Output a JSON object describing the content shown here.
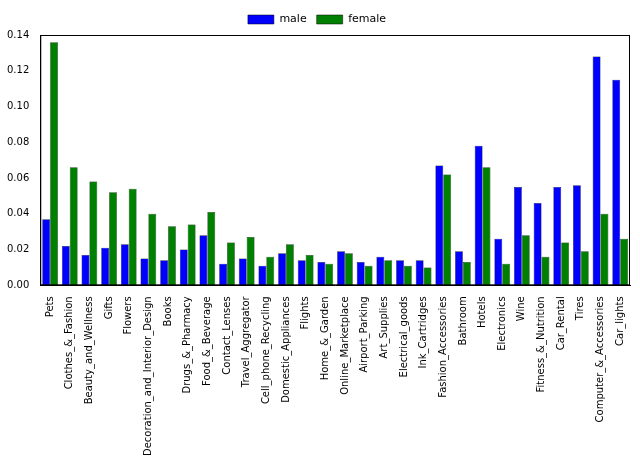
{
  "chart_data": {
    "type": "bar",
    "categories": [
      "Pets",
      "Clothes_&_Fashion",
      "Beauty_and_Wellness",
      "Gifts",
      "Flowers",
      "Decoration_and_Interior_Design",
      "Books",
      "Drugs_&_Pharmacy",
      "Food_&_Beverage",
      "Contact_Lenses",
      "Travel_Aggregator",
      "Cell_phone_Recycling",
      "Domestic_Appliances",
      "Flights",
      "Home_&_Garden",
      "Online_Marketplace",
      "Airport_Parking",
      "Art_Supplies",
      "Electrical_goods",
      "Ink_Cartridges",
      "Fashion_Accessories",
      "Bathroom",
      "Hotels",
      "Electronics",
      "Wine",
      "Fitness_&_Nutrition",
      "Car_Rental",
      "Tires",
      "Computer_&_Accessories",
      "Car_lights"
    ],
    "series": [
      {
        "name": "male",
        "color": "#0000ff",
        "values": [
          0.037,
          0.022,
          0.017,
          0.021,
          0.023,
          0.015,
          0.014,
          0.02,
          0.028,
          0.012,
          0.015,
          0.011,
          0.018,
          0.014,
          0.013,
          0.019,
          0.013,
          0.016,
          0.014,
          0.014,
          0.067,
          0.019,
          0.078,
          0.026,
          0.055,
          0.046,
          0.055,
          0.056,
          0.128,
          0.115
        ]
      },
      {
        "name": "female",
        "color": "#008000",
        "values": [
          0.136,
          0.066,
          0.058,
          0.052,
          0.054,
          0.04,
          0.033,
          0.034,
          0.041,
          0.024,
          0.027,
          0.016,
          0.023,
          0.017,
          0.012,
          0.018,
          0.011,
          0.014,
          0.011,
          0.01,
          0.062,
          0.013,
          0.066,
          0.012,
          0.028,
          0.016,
          0.024,
          0.019,
          0.04,
          0.026
        ]
      }
    ],
    "ylim": [
      0,
      0.14
    ],
    "yticks": [
      {
        "value": 0,
        "label": "0.00"
      },
      {
        "value": 0.02,
        "label": "0.02"
      },
      {
        "value": 0.04,
        "label": "0.04"
      },
      {
        "value": 0.06,
        "label": "0.06"
      },
      {
        "value": 0.08,
        "label": "0.08"
      },
      {
        "value": 0.1,
        "label": "0.10"
      },
      {
        "value": 0.12,
        "label": "0.12"
      },
      {
        "value": 0.14,
        "label": "0.14"
      }
    ],
    "grid": false,
    "legend": "upper center"
  }
}
